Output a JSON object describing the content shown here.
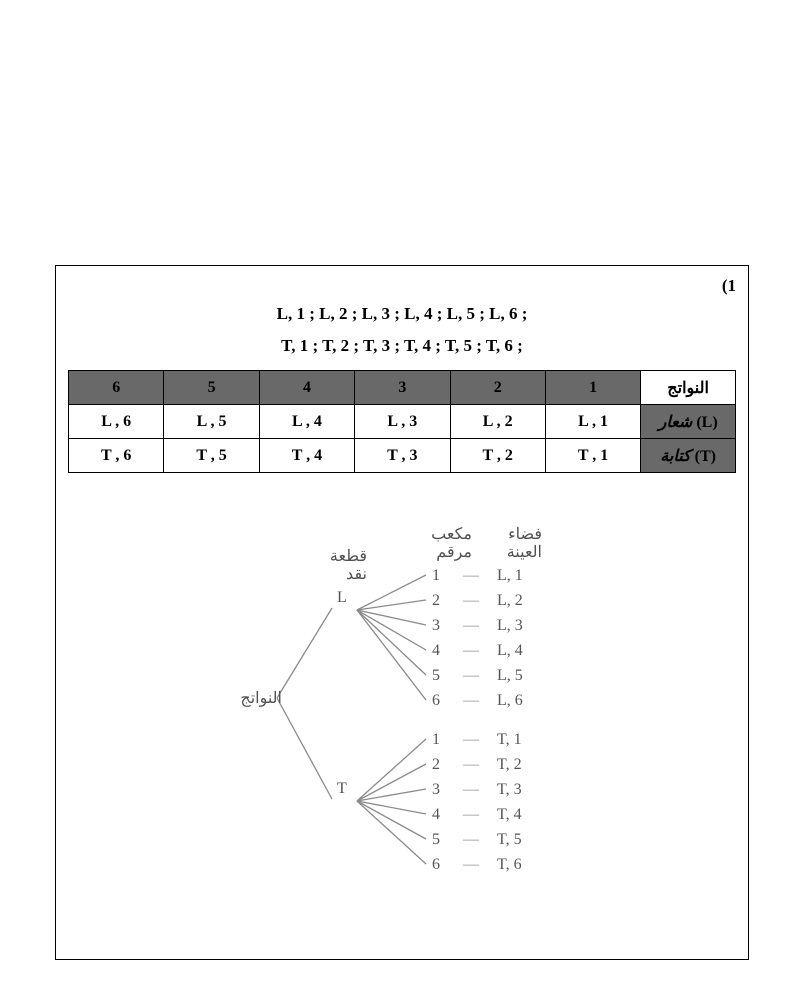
{
  "page": {
    "q_number": "(1",
    "line1": "L, 1 ; L, 2 ; L, 3 ; L, 4 ; L, 5 ; L, 6  ;",
    "line2": "T, 1 ; T, 2 ; T, 3 ; T, 4 ; T, 5 ; T, 6  ;"
  },
  "table": {
    "header_numbers": [
      "6",
      "5",
      "4",
      "3",
      "2",
      "1"
    ],
    "header_results": "النواتج",
    "rowL": {
      "cells": [
        "L , 6",
        "L , 5",
        "L , 4",
        "L , 3",
        "L , 2",
        "L , 1"
      ],
      "label_ar": "شعار",
      "label_code": "(L)"
    },
    "rowT": {
      "cells": [
        "T , 6",
        "T , 5",
        "T , 4",
        "T , 3",
        "T , 2",
        "T , 1"
      ],
      "label_ar": "كتابة",
      "label_code": "(T)"
    }
  },
  "tree": {
    "root_label": "النواتج",
    "coin_label_l1": "قطعة",
    "coin_label_l2": "نقد",
    "dice_label_l1": "مكعب",
    "dice_label_l2": "مرقم",
    "space_label_l1": "فضاء",
    "space_label_l2": "العينة",
    "branches": [
      "L",
      "T"
    ],
    "leaves": [
      "1",
      "2",
      "3",
      "4",
      "5",
      "6"
    ],
    "outcomes_L": [
      "L, 1",
      "L, 2",
      "L, 3",
      "L, 4",
      "L, 5",
      "L, 6"
    ],
    "outcomes_T": [
      "T, 1",
      "T, 2",
      "T, 3",
      "T, 4",
      "T, 5",
      "T, 6"
    ],
    "row_ys_L": [
      49,
      74,
      99,
      124,
      149,
      174
    ],
    "row_ys_T": [
      213,
      238,
      263,
      288,
      313,
      338
    ],
    "line_color": "#8a8a8a",
    "text_color": "#525252"
  },
  "style": {
    "header_bg": "#696969",
    "header_fg": "#ffffff",
    "cell_fg": "#000000",
    "border": "#000000",
    "page_bg": "#ffffff",
    "font_body": "Times New Roman",
    "font_size_body_pt": 12,
    "font_size_table_pt": 12,
    "dash": "—"
  }
}
